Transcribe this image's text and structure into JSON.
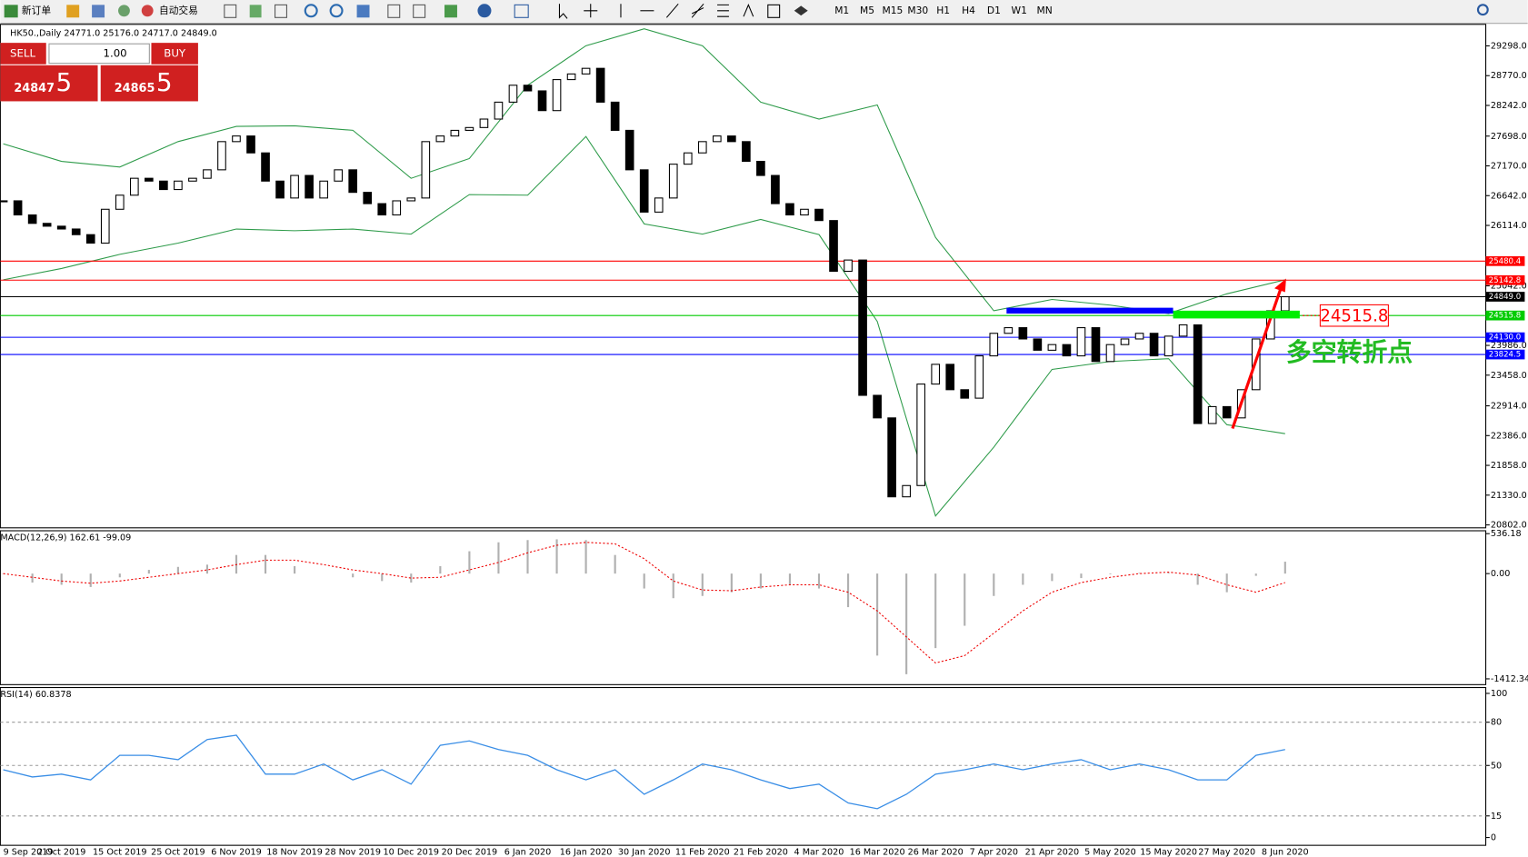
{
  "toolbar": {
    "new_order": "新订单",
    "auto_trading": "自动交易",
    "timeframes": [
      "M1",
      "M5",
      "M15",
      "M30",
      "H1",
      "H4",
      "D1",
      "W1",
      "MN"
    ]
  },
  "trade_panel": {
    "sell": "SELL",
    "lots": "1.00",
    "buy": "BUY",
    "sell_price_main": "24847",
    "sell_price_pip": "5",
    "buy_price_main": "24865",
    "buy_price_pip": "5"
  },
  "chart": {
    "type": "candlestick",
    "header": "HK50.,Daily  24771.0 25176.0 24717.0 24849.0",
    "ylim": [
      20750,
      29680
    ],
    "yticks": [
      {
        "value": 29298,
        "label": "29298.0"
      },
      {
        "value": 28770,
        "label": "28770.0"
      },
      {
        "value": 28242,
        "label": "28242.0"
      },
      {
        "value": 27698,
        "label": "27698.0"
      },
      {
        "value": 27170,
        "label": "27170.0"
      },
      {
        "value": 26642,
        "label": "26642.0"
      },
      {
        "value": 26114,
        "label": "26114.0"
      },
      {
        "value": 25042,
        "label": "25042.0"
      },
      {
        "value": 23986,
        "label": "23986.0"
      },
      {
        "value": 23458,
        "label": "23458.0"
      },
      {
        "value": 22914,
        "label": "22914.0"
      },
      {
        "value": 22386,
        "label": "22386.0"
      },
      {
        "value": 21858,
        "label": "21858.0"
      },
      {
        "value": 21330,
        "label": "21330.0"
      },
      {
        "value": 20802,
        "label": "20802.0"
      }
    ],
    "closes": [
      26550,
      26300,
      26150,
      26100,
      26050,
      25950,
      25800,
      26400,
      26650,
      26950,
      26900,
      26750,
      26900,
      26950,
      27100,
      27600,
      27700,
      27400,
      26900,
      26600,
      27000,
      26600,
      26900,
      27100,
      26700,
      26500,
      26300,
      26550,
      26600,
      27600,
      27700,
      27800,
      27850,
      28000,
      28300,
      28600,
      28500,
      28150,
      28700,
      28800,
      28900,
      28300,
      27800,
      27100,
      26350,
      26600,
      27200,
      27400,
      27600,
      27700,
      27600,
      27250,
      27000,
      26500,
      26300,
      26400,
      26200,
      25300,
      25500,
      23100,
      22700,
      21300,
      21500,
      23300,
      23650,
      23200,
      23050,
      23800,
      24200,
      24300,
      24100,
      23900,
      24000,
      23800,
      24300,
      23700,
      24000,
      24100,
      24200,
      23800,
      24150,
      24350,
      22600,
      22900,
      22700,
      23200,
      24100,
      24600,
      24849
    ],
    "band_upper": [
      27560,
      27250,
      27150,
      27600,
      27870,
      27880,
      27800,
      26950,
      27300,
      28600,
      29300,
      29600,
      29300,
      28300,
      28000,
      28250,
      25900,
      24600,
      24800,
      24700,
      24550,
      24900,
      25150
    ],
    "band_lower": [
      25150,
      25350,
      25600,
      25800,
      26050,
      26020,
      26050,
      25960,
      26660,
      26650,
      27690,
      26140,
      25960,
      26220,
      25950,
      24410,
      20960,
      22180,
      23560,
      23700,
      23750,
      22580,
      22420
    ],
    "band_color": "#2e9b4a",
    "levels": [
      {
        "value": 25480.4,
        "label": "25480.4",
        "color": "#ff0000"
      },
      {
        "value": 25142.8,
        "label": "25142.8",
        "color": "#ff0000"
      },
      {
        "value": 24849.0,
        "label": "24849.0",
        "color": "#000000"
      },
      {
        "value": 24515.8,
        "label": "24515.8",
        "color": "#00cc00"
      },
      {
        "value": 24130.0,
        "label": "24130.0",
        "color": "#0000ff"
      },
      {
        "value": 23824.5,
        "label": "23824.5",
        "color": "#0000ff"
      }
    ],
    "annotation_price": "24515.8",
    "annotation_text": "多空转折点",
    "dates": [
      "9 Sep 2019",
      "2 Oct 2019",
      "15 Oct 2019",
      "25 Oct 2019",
      "6 Nov 2019",
      "18 Nov 2019",
      "28 Nov 2019",
      "10 Dec 2019",
      "20 Dec 2019",
      "6 Jan 2020",
      "16 Jan 2020",
      "30 Jan 2020",
      "11 Feb 2020",
      "21 Feb 2020",
      "4 Mar 2020",
      "16 Mar 2020",
      "26 Mar 2020",
      "7 Apr 2020",
      "21 Apr 2020",
      "5 May 2020",
      "15 May 2020",
      "27 May 2020",
      "8 Jun 2020"
    ]
  },
  "macd": {
    "type": "bar",
    "label": "MACD(12,26,9) 162.61 -99.09",
    "ylim": [
      -1490,
      575
    ],
    "yticks": [
      {
        "value": 536.18,
        "label": "536.18"
      },
      {
        "value": 0,
        "label": "0.00"
      },
      {
        "value": -1412.34,
        "label": "-1412.34"
      }
    ],
    "histogram": [
      -5,
      -120,
      -150,
      -180,
      -50,
      50,
      90,
      120,
      250,
      250,
      100,
      0,
      -50,
      -100,
      -120,
      100,
      300,
      420,
      450,
      460,
      450,
      250,
      -200,
      -330,
      -300,
      -250,
      -200,
      -150,
      -200,
      -450,
      -1100,
      -1350,
      -1000,
      -700,
      -300,
      -150,
      -100,
      -60,
      -10,
      10,
      10,
      -150,
      -250,
      -30,
      160
    ],
    "signal": [
      0,
      -50,
      -100,
      -130,
      -100,
      -50,
      0,
      50,
      120,
      180,
      180,
      120,
      50,
      0,
      -60,
      -50,
      50,
      150,
      280,
      380,
      420,
      400,
      200,
      -100,
      -220,
      -230,
      -180,
      -150,
      -150,
      -250,
      -500,
      -850,
      -1200,
      -1100,
      -800,
      -500,
      -250,
      -120,
      -50,
      0,
      20,
      -20,
      -150,
      -250,
      -120
    ]
  },
  "rsi": {
    "type": "line",
    "label": "RSI(14) 60.8378",
    "ylim": [
      0,
      100
    ],
    "yticks": [
      100,
      80,
      50,
      15,
      0
    ],
    "values": [
      47,
      42,
      44,
      40,
      57,
      57,
      54,
      68,
      71,
      44,
      44,
      51,
      40,
      47,
      37,
      64,
      67,
      61,
      57,
      47,
      40,
      47,
      30,
      40,
      51,
      47,
      40,
      34,
      37,
      24,
      20,
      30,
      44,
      47,
      51,
      47,
      51,
      54,
      47,
      51,
      47,
      40,
      40,
      57,
      61
    ]
  }
}
